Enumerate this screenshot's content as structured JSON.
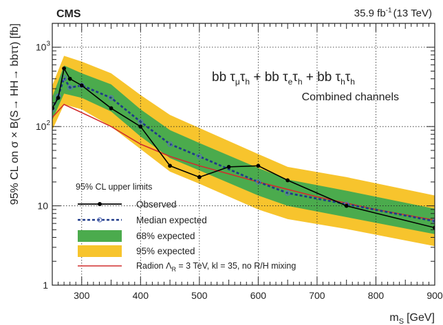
{
  "chart_data": {
    "type": "line",
    "experiment": "CMS",
    "luminosity": "35.9 fb",
    "lumi_sup": "-1",
    "energy": "(13 TeV)",
    "channel_title": "bb τ_μτ_h + bb τ_eτ_h + bb τ_hτ_h",
    "channel_subtitle": "Combined channels",
    "xlabel": "m",
    "xlabel_sub": "S",
    "xlabel_unit": "[GeV]",
    "ylabel": "95% CL on σ × B(S→ HH→ bbττ) [fb]",
    "xlim": [
      250,
      900
    ],
    "ylim": [
      1,
      2000
    ],
    "yscale": "log",
    "x_ticks": [
      300,
      400,
      500,
      600,
      700,
      800,
      900
    ],
    "y_ticks": [
      {
        "value": 1,
        "label": "1"
      },
      {
        "value": 10,
        "label": "10"
      },
      {
        "value": 100,
        "label": "10",
        "sup": "2"
      },
      {
        "value": 1000,
        "label": "10",
        "sup": "3"
      }
    ],
    "legend_title": "95% CL upper limits",
    "series": [
      {
        "name": "Observed",
        "kind": "line-markers",
        "color": "#000000",
        "x": [
          250,
          260,
          270,
          280,
          300,
          350,
          400,
          450,
          500,
          550,
          600,
          650,
          750,
          900
        ],
        "y": [
          170,
          230,
          540,
          400,
          330,
          170,
          100,
          32,
          23,
          31,
          32,
          21,
          10,
          5.3
        ]
      },
      {
        "name": "Median expected",
        "kind": "dashed-open-markers",
        "color": "#1f3a8a",
        "x": [
          250,
          260,
          270,
          280,
          300,
          350,
          400,
          450,
          500,
          600,
          650,
          750,
          900
        ],
        "y": [
          165,
          240,
          410,
          310,
          330,
          230,
          115,
          60,
          42,
          20,
          14.5,
          10.5,
          6.4
        ]
      },
      {
        "name": "68% expected",
        "kind": "band",
        "color": "#4bab4d",
        "x": [
          250,
          270,
          300,
          350,
          400,
          450,
          500,
          600,
          650,
          750,
          900
        ],
        "low": [
          120,
          260,
          230,
          155,
          75,
          40,
          28,
          13.5,
          10,
          7.2,
          4.4
        ],
        "high": [
          235,
          590,
          470,
          340,
          165,
          90,
          62,
          30,
          21.5,
          15.5,
          9.2
        ]
      },
      {
        "name": "95% expected",
        "kind": "band",
        "color": "#f7c42d",
        "x": [
          250,
          270,
          300,
          350,
          400,
          450,
          500,
          600,
          650,
          750,
          900
        ],
        "low": [
          90,
          190,
          165,
          100,
          52,
          27,
          19,
          9,
          6.8,
          5.1,
          3.1
        ],
        "high": [
          330,
          780,
          660,
          470,
          250,
          140,
          96,
          45,
          31,
          23,
          13.5
        ]
      },
      {
        "name": "Radion Λ_R = 3 TeV, kl = 35, no R/H mixing",
        "kind": "line",
        "color": "#d12d2d",
        "x": [
          250,
          270,
          300,
          350,
          400,
          450,
          500,
          600,
          700,
          800,
          900
        ],
        "y": [
          130,
          190,
          150,
          100,
          60,
          42,
          32,
          20,
          13,
          9,
          6.6
        ]
      }
    ]
  },
  "legend_labels": {
    "observed": "Observed",
    "median": "Median expected",
    "band68": "68% expected",
    "band95": "95% expected",
    "radion_prefix": "Radion Λ",
    "radion_sub": "R",
    "radion_suffix": " = 3 TeV, kl = 35, no R/H mixing"
  }
}
